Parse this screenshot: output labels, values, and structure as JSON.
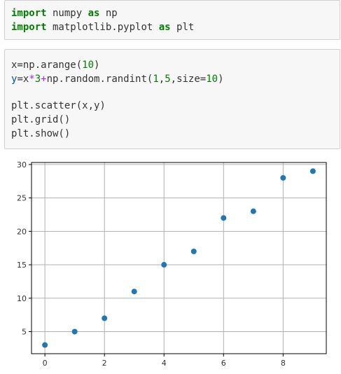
{
  "cells": [
    {
      "lines": [
        [
          {
            "t": "import",
            "c": "kw"
          },
          {
            "t": " numpy "
          },
          {
            "t": "as",
            "c": "kw"
          },
          {
            "t": " np"
          }
        ],
        [
          {
            "t": "import",
            "c": "kw"
          },
          {
            "t": " matplotlib.pyplot "
          },
          {
            "t": "as",
            "c": "kw"
          },
          {
            "t": " plt"
          }
        ]
      ]
    },
    {
      "lines": [
        [
          {
            "t": "x=np.arange("
          },
          {
            "t": "10",
            "c": "num"
          },
          {
            "t": ")"
          }
        ],
        [
          {
            "t": "y",
            "c": "var"
          },
          {
            "t": "=x"
          },
          {
            "t": "*",
            "c": "op"
          },
          {
            "t": "3",
            "c": "num"
          },
          {
            "t": "+",
            "c": "op"
          },
          {
            "t": "np.random.randint("
          },
          {
            "t": "1",
            "c": "num"
          },
          {
            "t": ","
          },
          {
            "t": "5",
            "c": "num"
          },
          {
            "t": ",size="
          },
          {
            "t": "10",
            "c": "num"
          },
          {
            "t": ")"
          }
        ],
        [],
        [
          {
            "t": "plt.scatter(x,y)"
          }
        ],
        [
          {
            "t": "plt.grid()"
          }
        ],
        [
          {
            "t": "plt.show()"
          }
        ]
      ]
    }
  ],
  "chart_data": {
    "type": "scatter",
    "x": [
      0,
      1,
      2,
      3,
      4,
      5,
      6,
      7,
      8,
      9
    ],
    "y": [
      3,
      5,
      7,
      11,
      15,
      17,
      22,
      23,
      28,
      29
    ],
    "xlim": [
      -0.45,
      9.45
    ],
    "ylim": [
      1.7,
      30.3
    ],
    "xticks": [
      0,
      2,
      4,
      6,
      8
    ],
    "yticks": [
      5,
      10,
      15,
      20,
      25,
      30
    ],
    "grid": true,
    "marker_color": "#1f77b4"
  }
}
